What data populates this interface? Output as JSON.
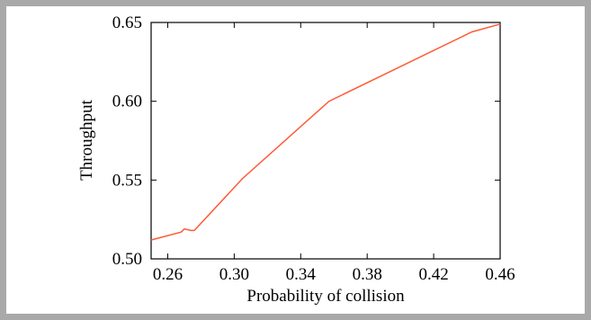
{
  "chart_data": {
    "type": "line",
    "title": "",
    "xlabel": "Probability of collision",
    "ylabel": "Throughput",
    "xlim": [
      0.25,
      0.46
    ],
    "ylim": [
      0.5,
      0.65
    ],
    "xticks": [
      0.26,
      0.3,
      0.34,
      0.38,
      0.42,
      0.46
    ],
    "xtick_labels": [
      "0.26",
      "0.30",
      "0.34",
      "0.38",
      "0.42",
      "0.46"
    ],
    "yticks": [
      0.5,
      0.55,
      0.6,
      0.65
    ],
    "ytick_labels": [
      "0.50",
      "0.55",
      "0.60",
      "0.65"
    ],
    "grid": false,
    "series": [
      {
        "color": "#ff5a36",
        "x": [
          0.25,
          0.268,
          0.27,
          0.274,
          0.276,
          0.305,
          0.357,
          0.443,
          0.46
        ],
        "y": [
          0.512,
          0.517,
          0.519,
          0.518,
          0.518,
          0.551,
          0.6,
          0.644,
          0.649
        ]
      }
    ]
  }
}
